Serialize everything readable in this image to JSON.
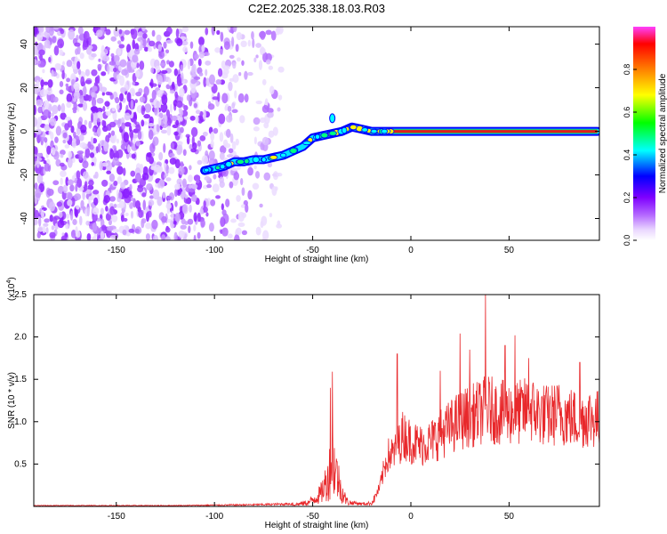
{
  "title": "C2E2.2025.338.18.03.R03",
  "chart_data": [
    {
      "type": "heatmap",
      "xlabel": "Height of straight line (km)",
      "ylabel": "Frequency (Hz)",
      "xlim": [
        -192,
        96
      ],
      "ylim": [
        -50,
        48
      ],
      "xticks": [
        -150,
        -100,
        -50,
        0,
        50
      ],
      "yticks": [
        -40,
        -20,
        0,
        20,
        40
      ],
      "colorbar": {
        "label": "Normalized spectral amplitude",
        "range": [
          0,
          1
        ],
        "ticks": [
          0.0,
          0.2,
          0.4,
          0.6,
          0.8
        ],
        "tick_labels": [
          "0.0",
          "0.2",
          "0.4",
          "0.6",
          "0.8"
        ],
        "colors": [
          "#ffffff",
          "#d9b3ff",
          "#8000ff",
          "#0000ff",
          "#00ffff",
          "#00ff00",
          "#ffff00",
          "#ff8000",
          "#ff0000"
        ]
      },
      "ridge": {
        "x": [
          -105,
          -100,
          -95,
          -90,
          -85,
          -80,
          -75,
          -70,
          -65,
          -60,
          -55,
          -50,
          -45,
          -40,
          -35,
          -30,
          -25,
          -20,
          -15,
          -10,
          -5,
          0,
          10,
          20,
          30,
          40,
          50,
          60,
          70,
          80,
          95
        ],
        "y": [
          -18,
          -17,
          -16,
          -14,
          -14,
          -13,
          -13,
          -12,
          -11,
          -9,
          -7,
          -3,
          -2,
          -1,
          0,
          2,
          1,
          0,
          0,
          0,
          0,
          0,
          0,
          0,
          0,
          0,
          0,
          0,
          0,
          0,
          0
        ]
      }
    },
    {
      "type": "line",
      "xlabel": "Height of straight line (km)",
      "ylabel": "SNR (10 * v/v)",
      "y_multiplier_label": "(x10",
      "y_multiplier_exp": "4",
      "xlim": [
        -192,
        96
      ],
      "ylim": [
        0,
        2.5
      ],
      "xticks": [
        -150,
        -100,
        -50,
        0,
        50
      ],
      "yticks": [
        0.5,
        1.0,
        1.5,
        2.0,
        2.5
      ],
      "series": [
        {
          "color": "#e8282b",
          "envelope_x": [
            -192,
            -120,
            -80,
            -60,
            -52,
            -46,
            -42,
            -40,
            -38,
            -36,
            -33,
            -30,
            -25,
            -20,
            -16,
            -12,
            -8,
            -4,
            0,
            5,
            10,
            15,
            20,
            25,
            30,
            35,
            38,
            40,
            45,
            50,
            55,
            60,
            65,
            70,
            75,
            80,
            85,
            90,
            96
          ],
          "envelope_y": [
            0.01,
            0.01,
            0.02,
            0.03,
            0.08,
            0.25,
            0.6,
            1.0,
            0.7,
            0.4,
            0.12,
            0.06,
            0.04,
            0.05,
            0.25,
            0.7,
            0.75,
            1.0,
            0.9,
            0.85,
            0.9,
            1.0,
            1.1,
            1.2,
            1.25,
            1.3,
            1.35,
            1.35,
            1.3,
            1.3,
            1.3,
            1.35,
            1.3,
            1.25,
            1.3,
            1.25,
            1.2,
            1.25,
            1.2
          ],
          "peaks": [
            {
              "x": -40,
              "y": 1.59
            },
            {
              "x": -41,
              "y": 1.4
            },
            {
              "x": 25,
              "y": 2.04
            },
            {
              "x": 38,
              "y": 2.52
            },
            {
              "x": 53,
              "y": 2.02
            },
            {
              "x": 48,
              "y": 1.9
            },
            {
              "x": -7,
              "y": 1.8
            },
            {
              "x": 30,
              "y": 1.85
            },
            {
              "x": 60,
              "y": 1.75
            },
            {
              "x": 15,
              "y": 1.6
            },
            {
              "x": 86,
              "y": 1.7
            }
          ]
        }
      ]
    }
  ]
}
